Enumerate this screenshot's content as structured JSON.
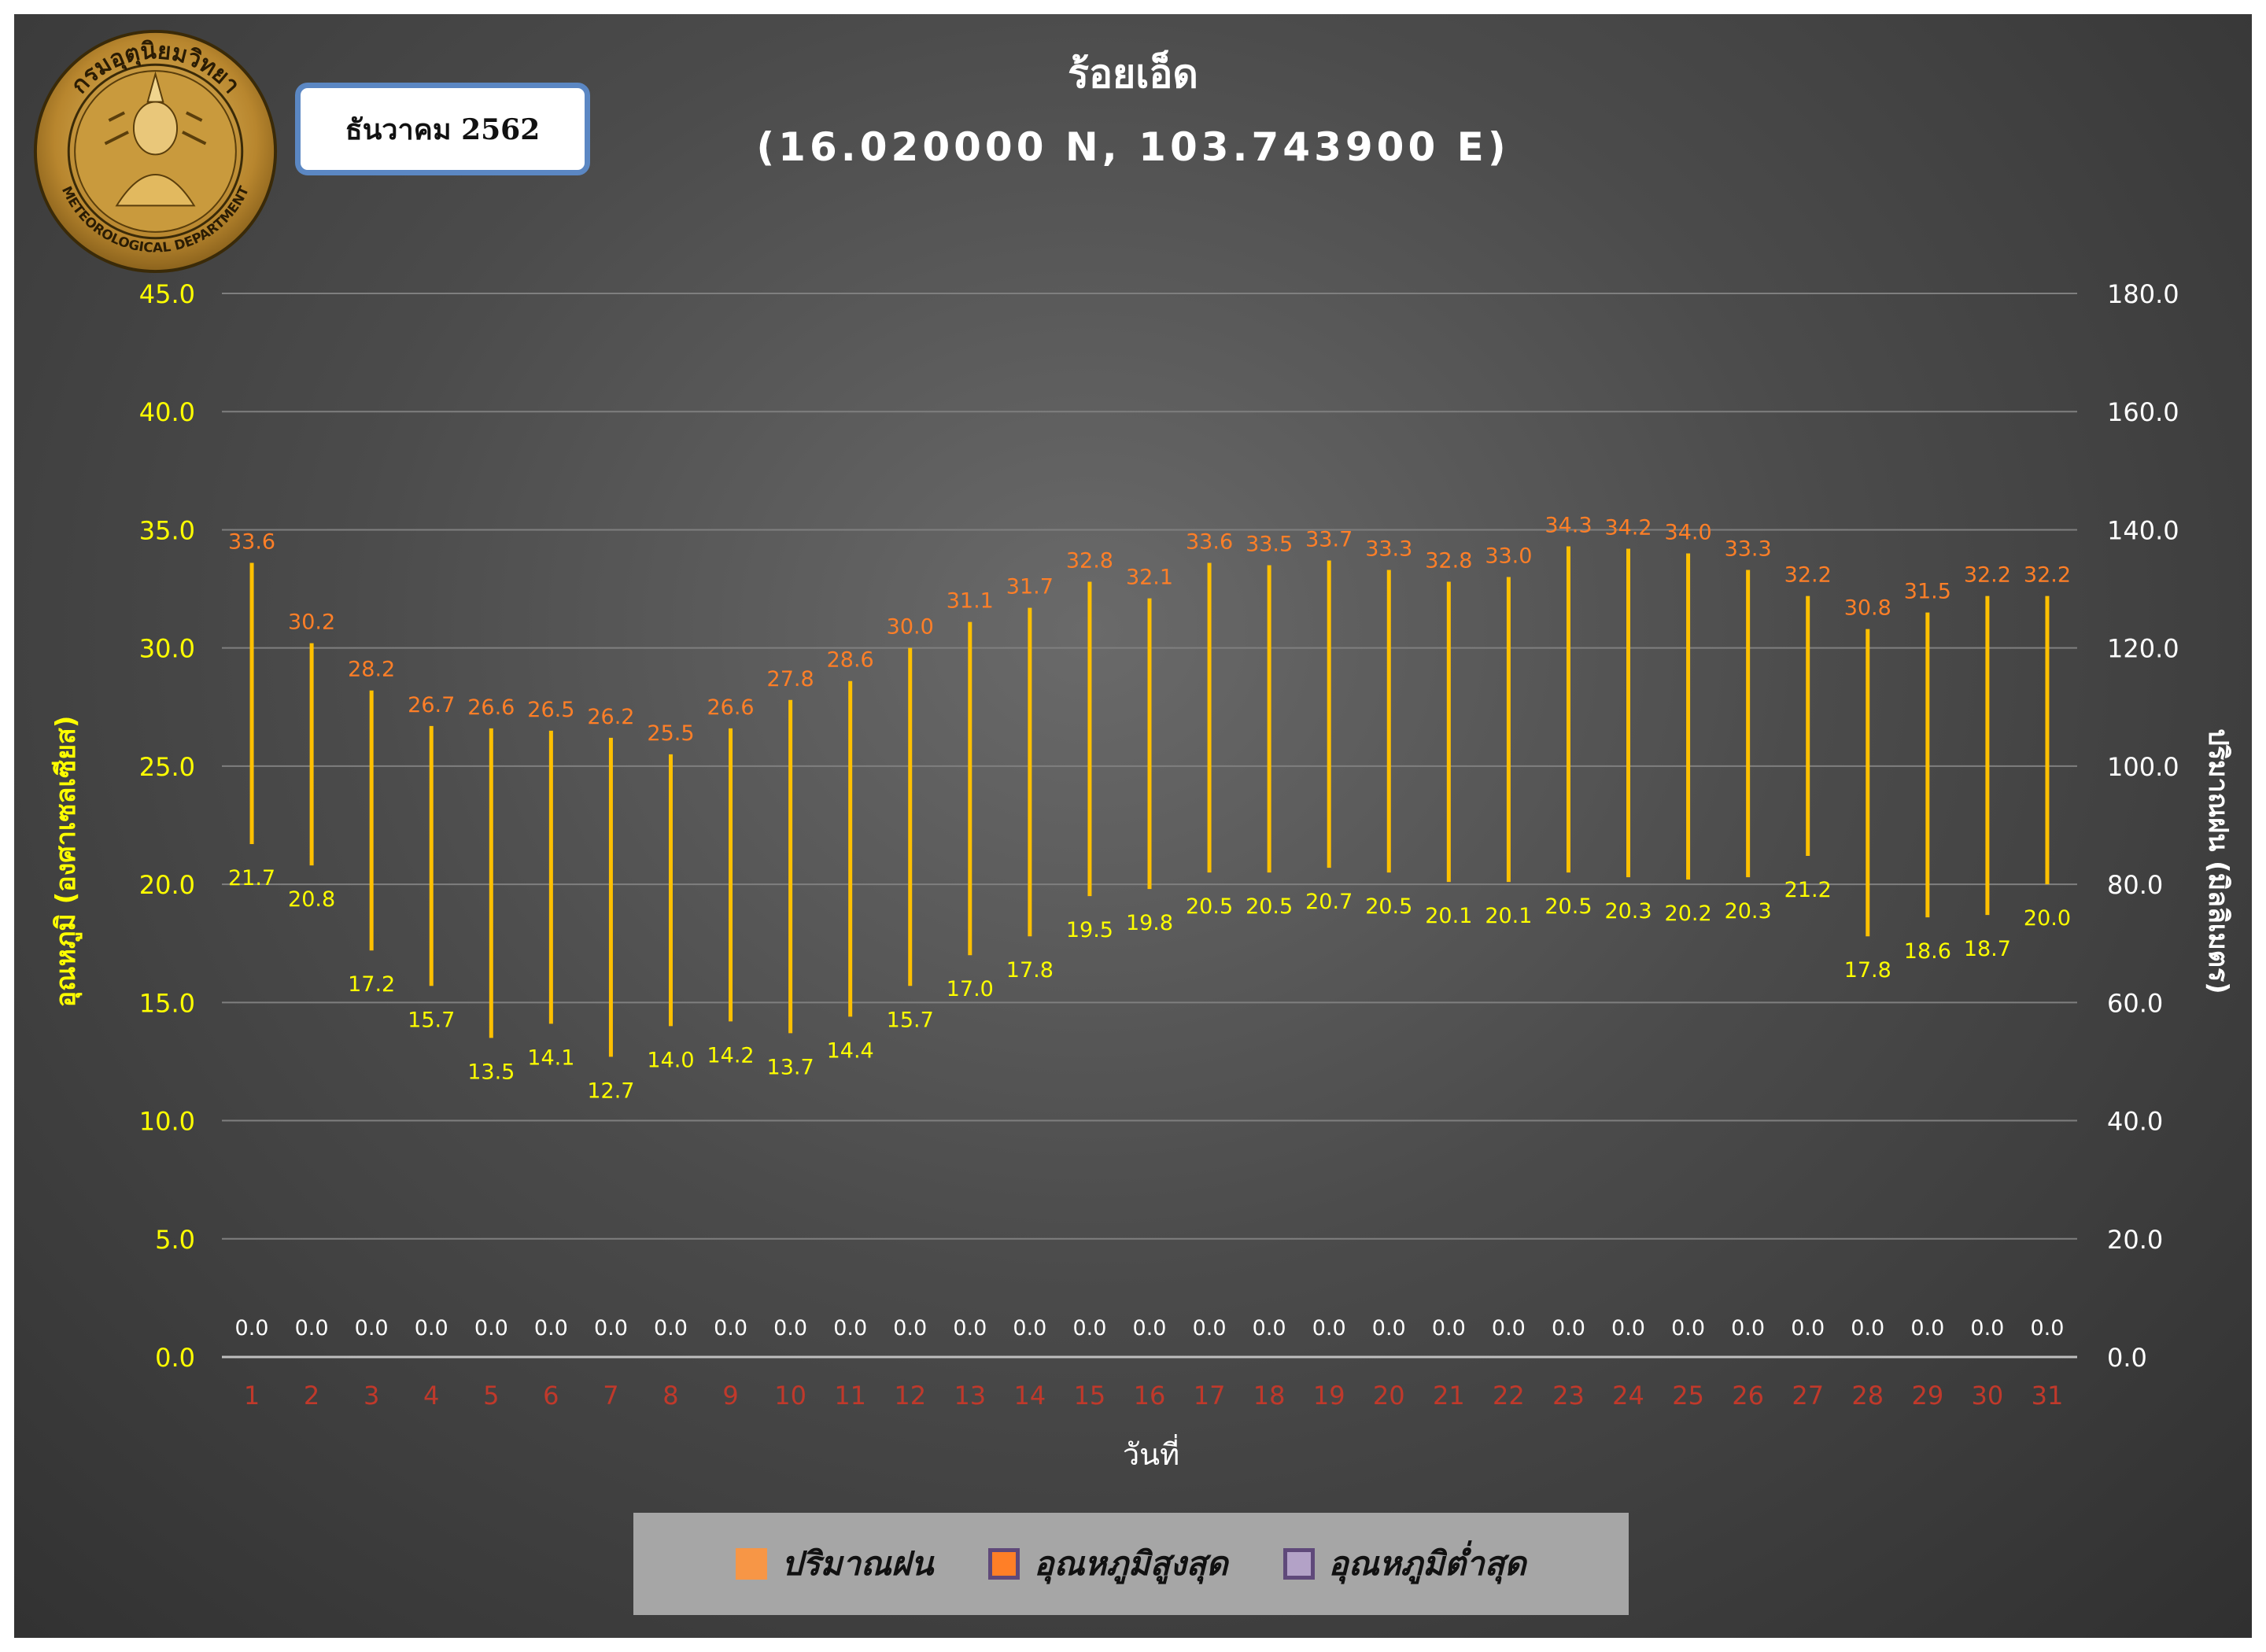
{
  "header": {
    "title": "ร้อยเอ็ด",
    "coordinates": "(16.020000 N, 103.743900 E)",
    "month": "ธันวาคม 2562",
    "logo_text_top": "กรมอุตุนิยมวิทยา",
    "logo_text_bottom": "METEOROLOGICAL DEPARTMENT"
  },
  "legend": {
    "items": [
      {
        "label": "ปริมาณฝน",
        "color": "#f79646",
        "border": "#f79646"
      },
      {
        "label": "อุณหภูมิสูงสุด",
        "color": "#ff7f27",
        "border": "#5f497a"
      },
      {
        "label": "อุณหภูมิต่ำสุด",
        "color": "#b3a2c7",
        "border": "#5f497a"
      }
    ]
  },
  "chart_data": {
    "type": "bar",
    "title": "ร้อยเอ็ด",
    "subtitle": "(16.020000 N, 103.743900 E)",
    "xlabel": "วันที่",
    "ylabel": "อุณหภูมิ (องศาเซลเซียส)",
    "ylabel_right": "ปริมาณฝน (มิลลิเมตร)",
    "ylim": [
      0,
      45
    ],
    "ylim_right": [
      0,
      180
    ],
    "yticks": [
      "0.0",
      "5.0",
      "10.0",
      "15.0",
      "20.0",
      "25.0",
      "30.0",
      "35.0",
      "40.0",
      "45.0"
    ],
    "yticks_right": [
      "0.0",
      "20.0",
      "40.0",
      "60.0",
      "80.0",
      "100.0",
      "120.0",
      "140.0",
      "160.0",
      "180.0"
    ],
    "grid": true,
    "legend_position": "bottom",
    "categories": [
      "1",
      "2",
      "3",
      "4",
      "5",
      "6",
      "7",
      "8",
      "9",
      "10",
      "11",
      "12",
      "13",
      "14",
      "15",
      "16",
      "17",
      "18",
      "19",
      "20",
      "21",
      "22",
      "23",
      "24",
      "25",
      "26",
      "27",
      "28",
      "29",
      "30",
      "31"
    ],
    "series": [
      {
        "name": "ปริมาณฝน",
        "axis": "right",
        "color": "#f79646",
        "values": [
          0.0,
          0.0,
          0.0,
          0.0,
          0.0,
          0.0,
          0.0,
          0.0,
          0.0,
          0.0,
          0.0,
          0.0,
          0.0,
          0.0,
          0.0,
          0.0,
          0.0,
          0.0,
          0.0,
          0.0,
          0.0,
          0.0,
          0.0,
          0.0,
          0.0,
          0.0,
          0.0,
          0.0,
          0.0,
          0.0,
          0.0
        ]
      },
      {
        "name": "อุณหภูมิสูงสุด",
        "axis": "left",
        "color": "#ff7f27",
        "values": [
          33.6,
          30.2,
          28.2,
          26.7,
          26.6,
          26.5,
          26.2,
          25.5,
          26.6,
          27.8,
          28.6,
          30.0,
          31.1,
          31.7,
          32.8,
          32.1,
          33.6,
          33.5,
          33.7,
          33.3,
          32.8,
          33.0,
          34.3,
          34.2,
          34.0,
          33.3,
          32.2,
          30.8,
          31.5,
          32.2,
          32.2
        ]
      },
      {
        "name": "อุณหภูมิต่ำสุด",
        "axis": "left",
        "color": "#ffff00",
        "values": [
          21.7,
          20.8,
          17.2,
          15.7,
          13.5,
          14.1,
          12.7,
          14.0,
          14.2,
          13.7,
          14.4,
          15.7,
          17.0,
          17.8,
          19.5,
          19.8,
          20.5,
          20.5,
          20.7,
          20.5,
          20.1,
          20.1,
          20.5,
          20.3,
          20.2,
          20.3,
          21.2,
          17.8,
          18.6,
          18.7,
          20.0
        ]
      }
    ],
    "rain_labels": [
      "0.0",
      "0.0",
      "0.0",
      "0.0",
      "0.0",
      "0.0",
      "0.0",
      "0.0",
      "0.0",
      "0.0",
      "0.0",
      "0.0",
      "0.0",
      "0.0",
      "0.0",
      "0.0",
      "0.0",
      "0.0",
      "0.0",
      "0.0",
      "0.0",
      "0.0",
      "0.0",
      "0.0",
      "0.0",
      "0.0",
      "0.0",
      "0.0",
      "0.0",
      "0.0",
      "0.0"
    ],
    "max_labels": [
      "33.6",
      "30.2",
      "28.2",
      "26.7",
      "26.6",
      "26.5",
      "26.2",
      "25.5",
      "26.6",
      "27.8",
      "28.6",
      "30.0",
      "31.1",
      "31.7",
      "32.8",
      "32.1",
      "33.6",
      "33.5",
      "33.7",
      "33.3",
      "32.8",
      "33.0",
      "34.3",
      "34.2",
      "34.0",
      "33.3",
      "32.2",
      "30.8",
      "31.5",
      "32.2",
      "32.2"
    ],
    "min_labels": [
      "21.7",
      "20.8",
      "17.2",
      "15.7",
      "13.5",
      "14.1",
      "12.7",
      "14.0",
      "14.2",
      "13.7",
      "14.4",
      "15.7",
      "17.0",
      "17.8",
      "19.5",
      "19.8",
      "20.5",
      "20.5",
      "20.7",
      "20.5",
      "20.1",
      "20.1",
      "20.5",
      "20.3",
      "20.2",
      "20.3",
      "21.2",
      "17.8",
      "18.6",
      "18.7",
      "20.0"
    ],
    "colors": {
      "left_axis": "#ffff00",
      "right_axis": "#ffffff",
      "x_ticks": "#c0392b",
      "range_bar": "#ffc000",
      "max_label": "#ff7f27",
      "min_label": "#ffff00",
      "rain_label": "#ffffff",
      "grid": "#7f7f7f"
    }
  }
}
